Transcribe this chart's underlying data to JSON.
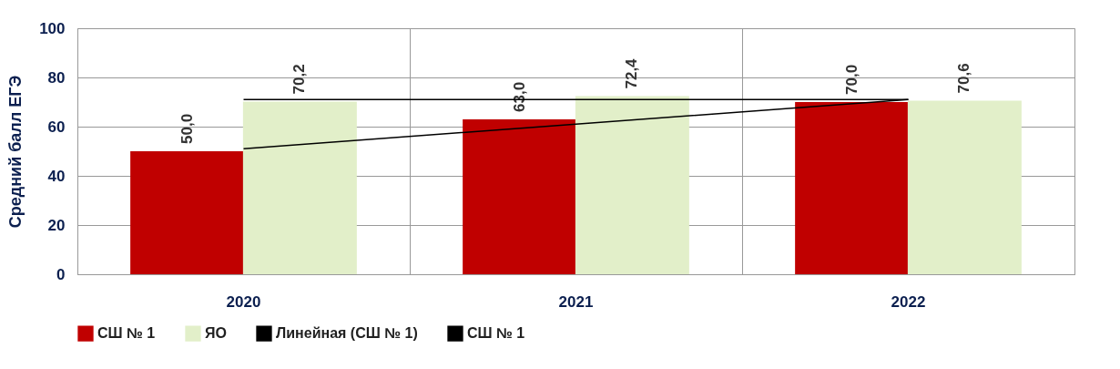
{
  "chart_data": {
    "type": "bar",
    "ylabel": "Средний балл ЕГЭ",
    "categories": [
      "2020",
      "2021",
      "2022"
    ],
    "series": [
      {
        "name": "СШ № 1",
        "color": "#c00000",
        "values": [
          50.0,
          63.0,
          70.0
        ],
        "value_labels": [
          "50,0",
          "63,0",
          "70,0"
        ]
      },
      {
        "name": "ЯО",
        "color": "#e2efc9",
        "values": [
          70.2,
          72.4,
          70.6
        ],
        "value_labels": [
          "70,2",
          "72,4",
          "70,6"
        ]
      },
      {
        "name": "Линейная (СШ № 1)",
        "type": "line",
        "color": "#000000",
        "values": [
          51,
          61,
          71
        ]
      },
      {
        "name": "СШ № 1",
        "type": "line",
        "color": "#000000",
        "values": [
          71,
          71,
          71
        ]
      }
    ],
    "ylim": [
      0,
      100
    ],
    "yticks": [
      0,
      20,
      40,
      60,
      80,
      100
    ],
    "grid": true,
    "legend": "bottom",
    "marker": "none",
    "line_style": "solid"
  }
}
